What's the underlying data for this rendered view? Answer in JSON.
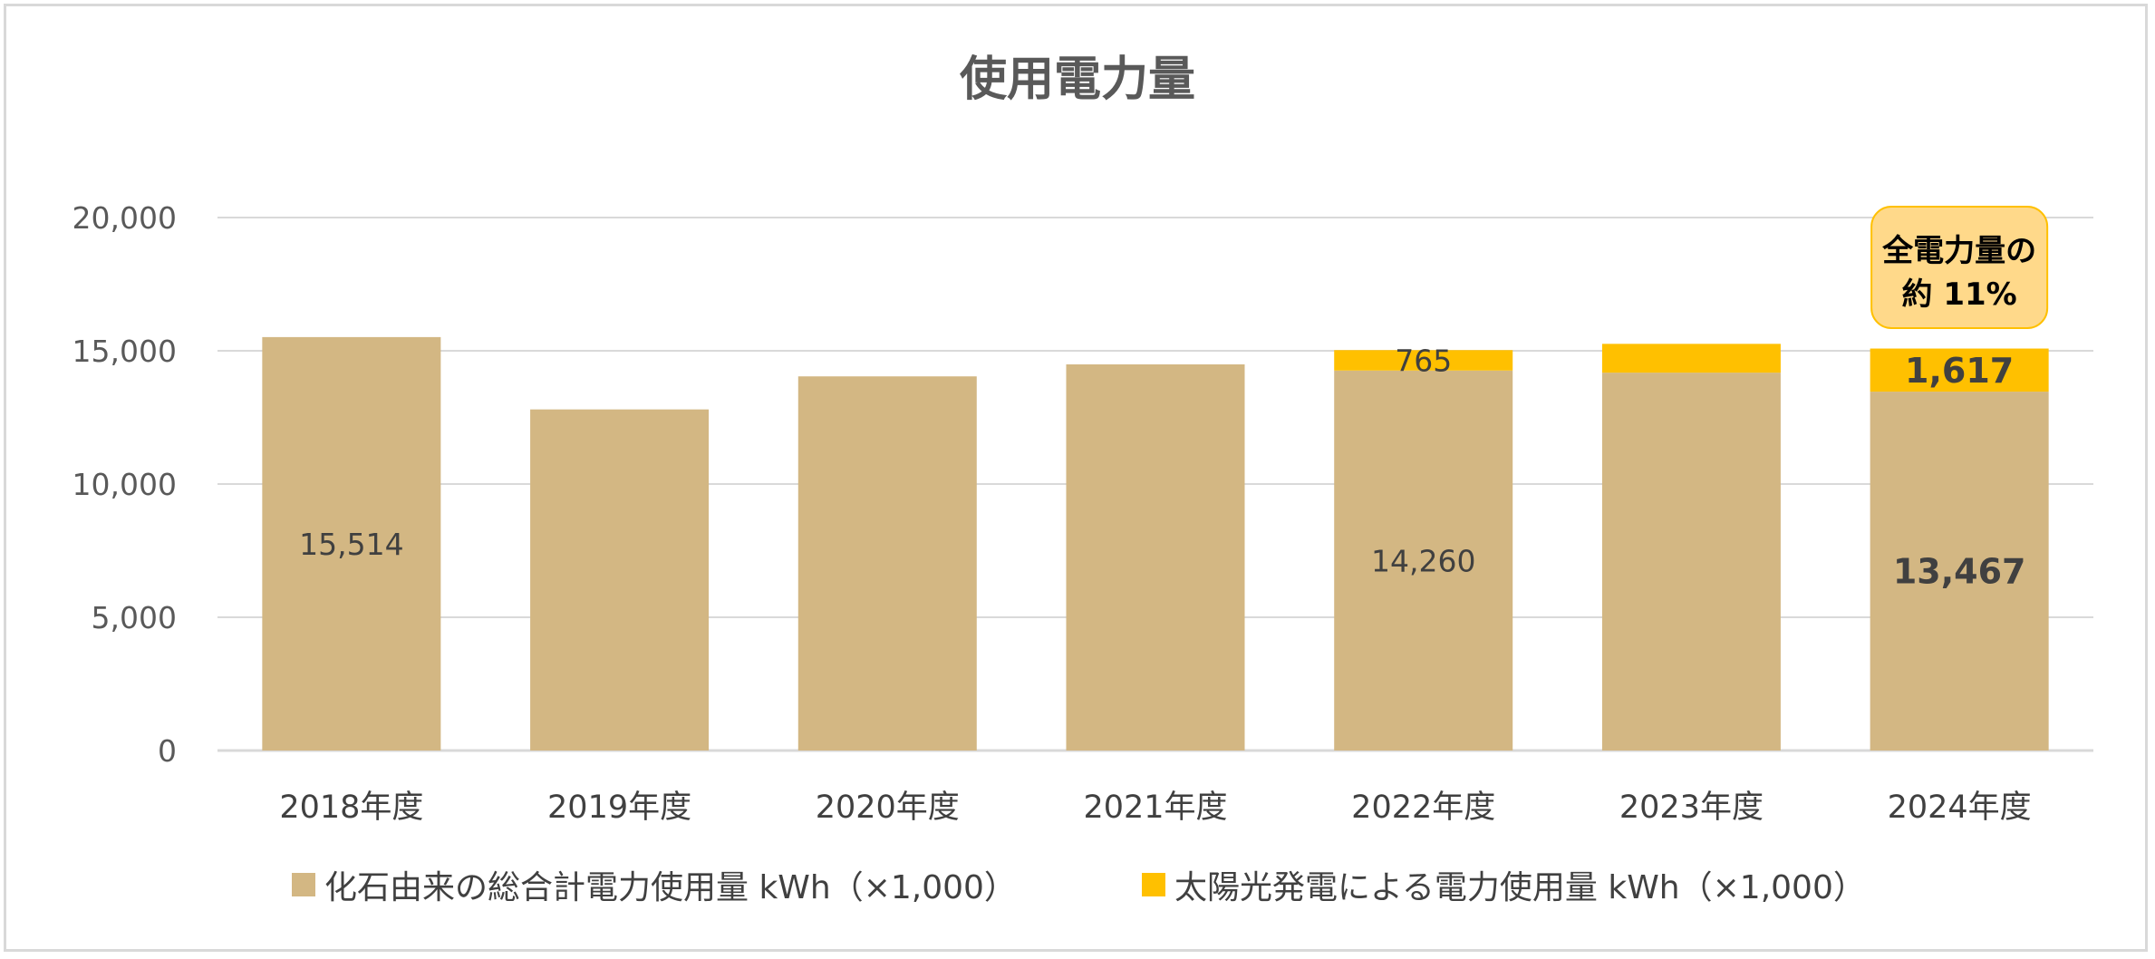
{
  "chart_data": {
    "type": "bar",
    "stacked": true,
    "title": "使用電力量",
    "categories": [
      "2018年度",
      "2019年度",
      "2020年度",
      "2021年度",
      "2022年度",
      "2023年度",
      "2024年度"
    ],
    "series": [
      {
        "name": "化石由来の総合計電力使用量 kWh（×1,000）",
        "color": "#d3b783",
        "values": [
          15514,
          12800,
          14040,
          14490,
          14260,
          14180,
          13467
        ]
      },
      {
        "name": "太陽光発電による電力使用量 kWh（×1,000）",
        "color": "#ffc000",
        "values": [
          0,
          0,
          0,
          0,
          765,
          1080,
          1617
        ]
      }
    ],
    "data_labels": [
      {
        "series": 0,
        "index": 0,
        "text": "15,514",
        "bold": false
      },
      {
        "series": 0,
        "index": 4,
        "text": "14,260",
        "bold": false
      },
      {
        "series": 1,
        "index": 4,
        "text": "765",
        "bold": false
      },
      {
        "series": 0,
        "index": 6,
        "text": "13,467",
        "bold": true
      },
      {
        "series": 1,
        "index": 6,
        "text": "1,617",
        "bold": true
      }
    ],
    "ylim": [
      0,
      20000
    ],
    "yticks": [
      "0",
      "5,000",
      "10,000",
      "15,000",
      "20,000"
    ],
    "grid": true,
    "legend_position": "bottom",
    "annotation": {
      "lines": [
        "全電力量の",
        "約 11%"
      ],
      "fill": "#ffd98a",
      "border": "#ffc000",
      "category_index": 6
    }
  }
}
